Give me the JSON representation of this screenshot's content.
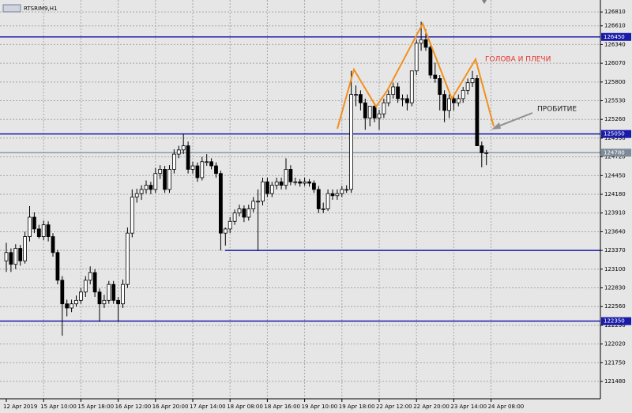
{
  "chart_data": {
    "type": "candlestick",
    "title": "RTSRIM9,H1",
    "up_color": "#ffffff",
    "down_color": "#000000",
    "wick_color": "#000000",
    "grid": true,
    "ylim": [
      121230,
      126960
    ],
    "yticks": [
      126810,
      126610,
      126340,
      126070,
      125800,
      125530,
      125260,
      124990,
      124720,
      124450,
      124180,
      123910,
      123640,
      123370,
      123100,
      122830,
      122560,
      122290,
      122020,
      121750,
      121480
    ],
    "xticks": [
      {
        "value": 0,
        "label": "12 Apr 2019"
      },
      {
        "value": 8,
        "label": "15 Apr 10:00"
      },
      {
        "value": 16,
        "label": "15 Apr 18:00"
      },
      {
        "value": 24,
        "label": "16 Apr 12:00"
      },
      {
        "value": 32,
        "label": "16 Apr 20:00"
      },
      {
        "value": 40,
        "label": "17 Apr 14:00"
      },
      {
        "value": 48,
        "label": "18 Apr 08:00"
      },
      {
        "value": 56,
        "label": "18 Apr 16:00"
      },
      {
        "value": 64,
        "label": "19 Apr 10:00"
      },
      {
        "value": 72,
        "label": "19 Apr 18:00"
      },
      {
        "value": 80,
        "label": "22 Apr 12:00"
      },
      {
        "value": 88,
        "label": "22 Apr 20:00"
      },
      {
        "value": 96,
        "label": "23 Apr 14:00"
      },
      {
        "value": 104,
        "label": "24 Apr 08:00"
      }
    ],
    "levels": [
      {
        "value": 126450,
        "color": "#1a1aa8",
        "label_color": "#1a1aa8"
      },
      {
        "value": 125050,
        "color": "#1a1aa8",
        "label_color": "#1a1aa8"
      },
      {
        "value": 124780,
        "color": "#8a9aaa",
        "label_color": "#7d8a97"
      },
      {
        "value": 123370,
        "color": "#1a1aa8"
      },
      {
        "value": 122350,
        "color": "#1a1aa8",
        "label_color": "#1a1aa8"
      }
    ],
    "annotations": [
      "ГОЛОВА И ПЛЕЧИ",
      "ПРОБИТИЕ"
    ],
    "candles": [
      [
        123220,
        123480,
        123060,
        123340
      ],
      [
        123340,
        123400,
        123060,
        123170
      ],
      [
        123170,
        123460,
        123100,
        123400
      ],
      [
        123400,
        123450,
        123150,
        123220
      ],
      [
        123220,
        123640,
        123180,
        123570
      ],
      [
        123570,
        124010,
        123500,
        123850
      ],
      [
        123850,
        123920,
        123620,
        123680
      ],
      [
        123680,
        123740,
        123540,
        123570
      ],
      [
        123570,
        123800,
        123520,
        123740
      ],
      [
        123740,
        123790,
        123500,
        123570
      ],
      [
        123570,
        123620,
        123280,
        123340
      ],
      [
        123340,
        123380,
        122880,
        122940
      ],
      [
        122940,
        123000,
        122140,
        122600
      ],
      [
        122600,
        122660,
        122420,
        122540
      ],
      [
        122540,
        122660,
        122480,
        122600
      ],
      [
        122600,
        122720,
        122560,
        122650
      ],
      [
        122650,
        122830,
        122600,
        122770
      ],
      [
        122770,
        123000,
        122700,
        122940
      ],
      [
        122940,
        123140,
        122880,
        123050
      ],
      [
        123050,
        123100,
        122700,
        122770
      ],
      [
        122770,
        122820,
        122340,
        122600
      ],
      [
        122600,
        122730,
        122540,
        122650
      ],
      [
        122650,
        122930,
        122600,
        122880
      ],
      [
        122880,
        122930,
        122600,
        122650
      ],
      [
        122650,
        122700,
        122340,
        122600
      ],
      [
        122600,
        122950,
        122540,
        122880
      ],
      [
        122880,
        123700,
        122830,
        123620
      ],
      [
        123620,
        124250,
        123560,
        124140
      ],
      [
        124140,
        124260,
        124060,
        124190
      ],
      [
        124190,
        124310,
        124100,
        124250
      ],
      [
        124250,
        124380,
        124190,
        124310
      ],
      [
        124310,
        124360,
        124180,
        124250
      ],
      [
        124250,
        124560,
        124200,
        124480
      ],
      [
        124480,
        124600,
        124400,
        124540
      ],
      [
        124540,
        124590,
        124200,
        124250
      ],
      [
        124250,
        124600,
        124200,
        124540
      ],
      [
        124540,
        124830,
        124480,
        124760
      ],
      [
        124760,
        124880,
        124700,
        124820
      ],
      [
        124820,
        125050,
        124760,
        124880
      ],
      [
        124880,
        124940,
        124480,
        124540
      ],
      [
        124540,
        124650,
        124480,
        124590
      ],
      [
        124590,
        124640,
        124360,
        124420
      ],
      [
        124420,
        124720,
        124380,
        124650
      ],
      [
        124650,
        124760,
        124590,
        124650
      ],
      [
        124650,
        124700,
        124540,
        124590
      ],
      [
        124590,
        124640,
        124420,
        124480
      ],
      [
        124480,
        124520,
        123370,
        123620
      ],
      [
        123620,
        123700,
        123440,
        123680
      ],
      [
        123680,
        123850,
        123620,
        123790
      ],
      [
        123790,
        123960,
        123740,
        123910
      ],
      [
        123910,
        124030,
        123860,
        123970
      ],
      [
        123970,
        124020,
        123780,
        123850
      ],
      [
        123850,
        124030,
        123800,
        123970
      ],
      [
        123970,
        124140,
        123920,
        124080
      ],
      [
        124080,
        124250,
        123370,
        124080
      ],
      [
        124080,
        124420,
        124020,
        124360
      ],
      [
        124360,
        124420,
        124140,
        124190
      ],
      [
        124190,
        124360,
        124140,
        124310
      ],
      [
        124310,
        124420,
        124250,
        124360
      ],
      [
        124360,
        124420,
        124250,
        124310
      ],
      [
        124310,
        124700,
        124250,
        124540
      ],
      [
        124540,
        124600,
        124310,
        124360
      ],
      [
        124360,
        124420,
        124310,
        124360
      ],
      [
        124360,
        124400,
        124290,
        124340
      ],
      [
        124340,
        124420,
        124300,
        124360
      ],
      [
        124360,
        124400,
        124290,
        124340
      ],
      [
        124340,
        124380,
        124200,
        124250
      ],
      [
        124250,
        124300,
        123910,
        123970
      ],
      [
        123970,
        124060,
        123910,
        123970
      ],
      [
        123970,
        124250,
        123940,
        124190
      ],
      [
        124190,
        124250,
        124100,
        124160
      ],
      [
        124160,
        124250,
        124100,
        124190
      ],
      [
        124190,
        124300,
        124140,
        124250
      ],
      [
        124250,
        124310,
        124200,
        124250
      ],
      [
        124250,
        125960,
        124200,
        125620
      ],
      [
        125620,
        125750,
        125450,
        125620
      ],
      [
        125620,
        125680,
        125390,
        125500
      ],
      [
        125500,
        125560,
        125110,
        125280
      ],
      [
        125280,
        125450,
        125160,
        125450
      ],
      [
        125450,
        125500,
        125220,
        125280
      ],
      [
        125280,
        125400,
        125110,
        125340
      ],
      [
        125340,
        125560,
        125280,
        125500
      ],
      [
        125500,
        125680,
        125450,
        125620
      ],
      [
        125620,
        125790,
        125560,
        125730
      ],
      [
        125730,
        125790,
        125500,
        125560
      ],
      [
        125560,
        125620,
        125450,
        125560
      ],
      [
        125560,
        125620,
        125390,
        125500
      ],
      [
        125500,
        125960,
        125450,
        125960
      ],
      [
        125960,
        126410,
        125900,
        126360
      ],
      [
        126360,
        126670,
        126250,
        126410
      ],
      [
        126410,
        126560,
        126250,
        126300
      ],
      [
        126300,
        126360,
        125850,
        125900
      ],
      [
        125900,
        126080,
        125790,
        125850
      ],
      [
        125850,
        125900,
        125390,
        125620
      ],
      [
        125620,
        125680,
        125220,
        125390
      ],
      [
        125390,
        125620,
        125280,
        125560
      ],
      [
        125560,
        125620,
        125390,
        125500
      ],
      [
        125500,
        125620,
        125450,
        125560
      ],
      [
        125560,
        125730,
        125500,
        125680
      ],
      [
        125680,
        125850,
        125620,
        125790
      ],
      [
        125790,
        125960,
        125730,
        125850
      ],
      [
        125850,
        125900,
        124880,
        124880
      ],
      [
        124880,
        124940,
        124570,
        124780
      ],
      [
        124780,
        124820,
        124600,
        124780
      ]
    ]
  }
}
